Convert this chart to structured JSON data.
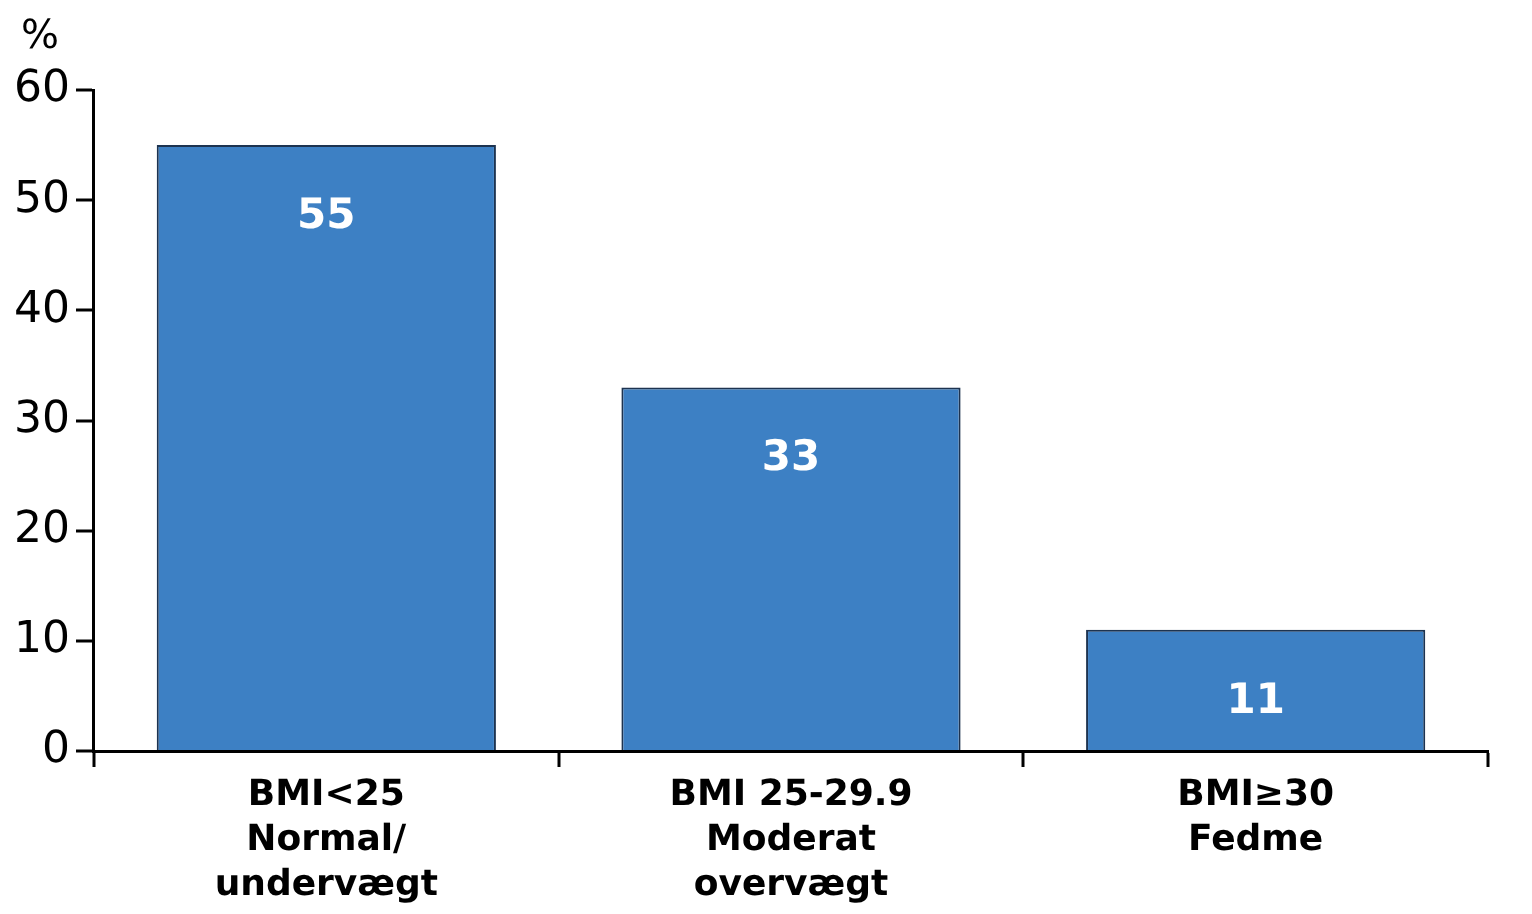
{
  "chart_data": {
    "type": "bar",
    "ylabel": "%",
    "categories": [
      "BMI<25\nNormal/\nundervægt",
      "BMI 25-29.9\nModerat\novervægt",
      "BMI≥30\nFedme"
    ],
    "values": [
      55,
      33,
      11
    ],
    "color": "#3d80c4",
    "ylim": [
      0,
      60
    ],
    "yticks": [
      0,
      10,
      20,
      30,
      40,
      50,
      60
    ],
    "grid": false,
    "legend": false,
    "data_labels": true
  }
}
